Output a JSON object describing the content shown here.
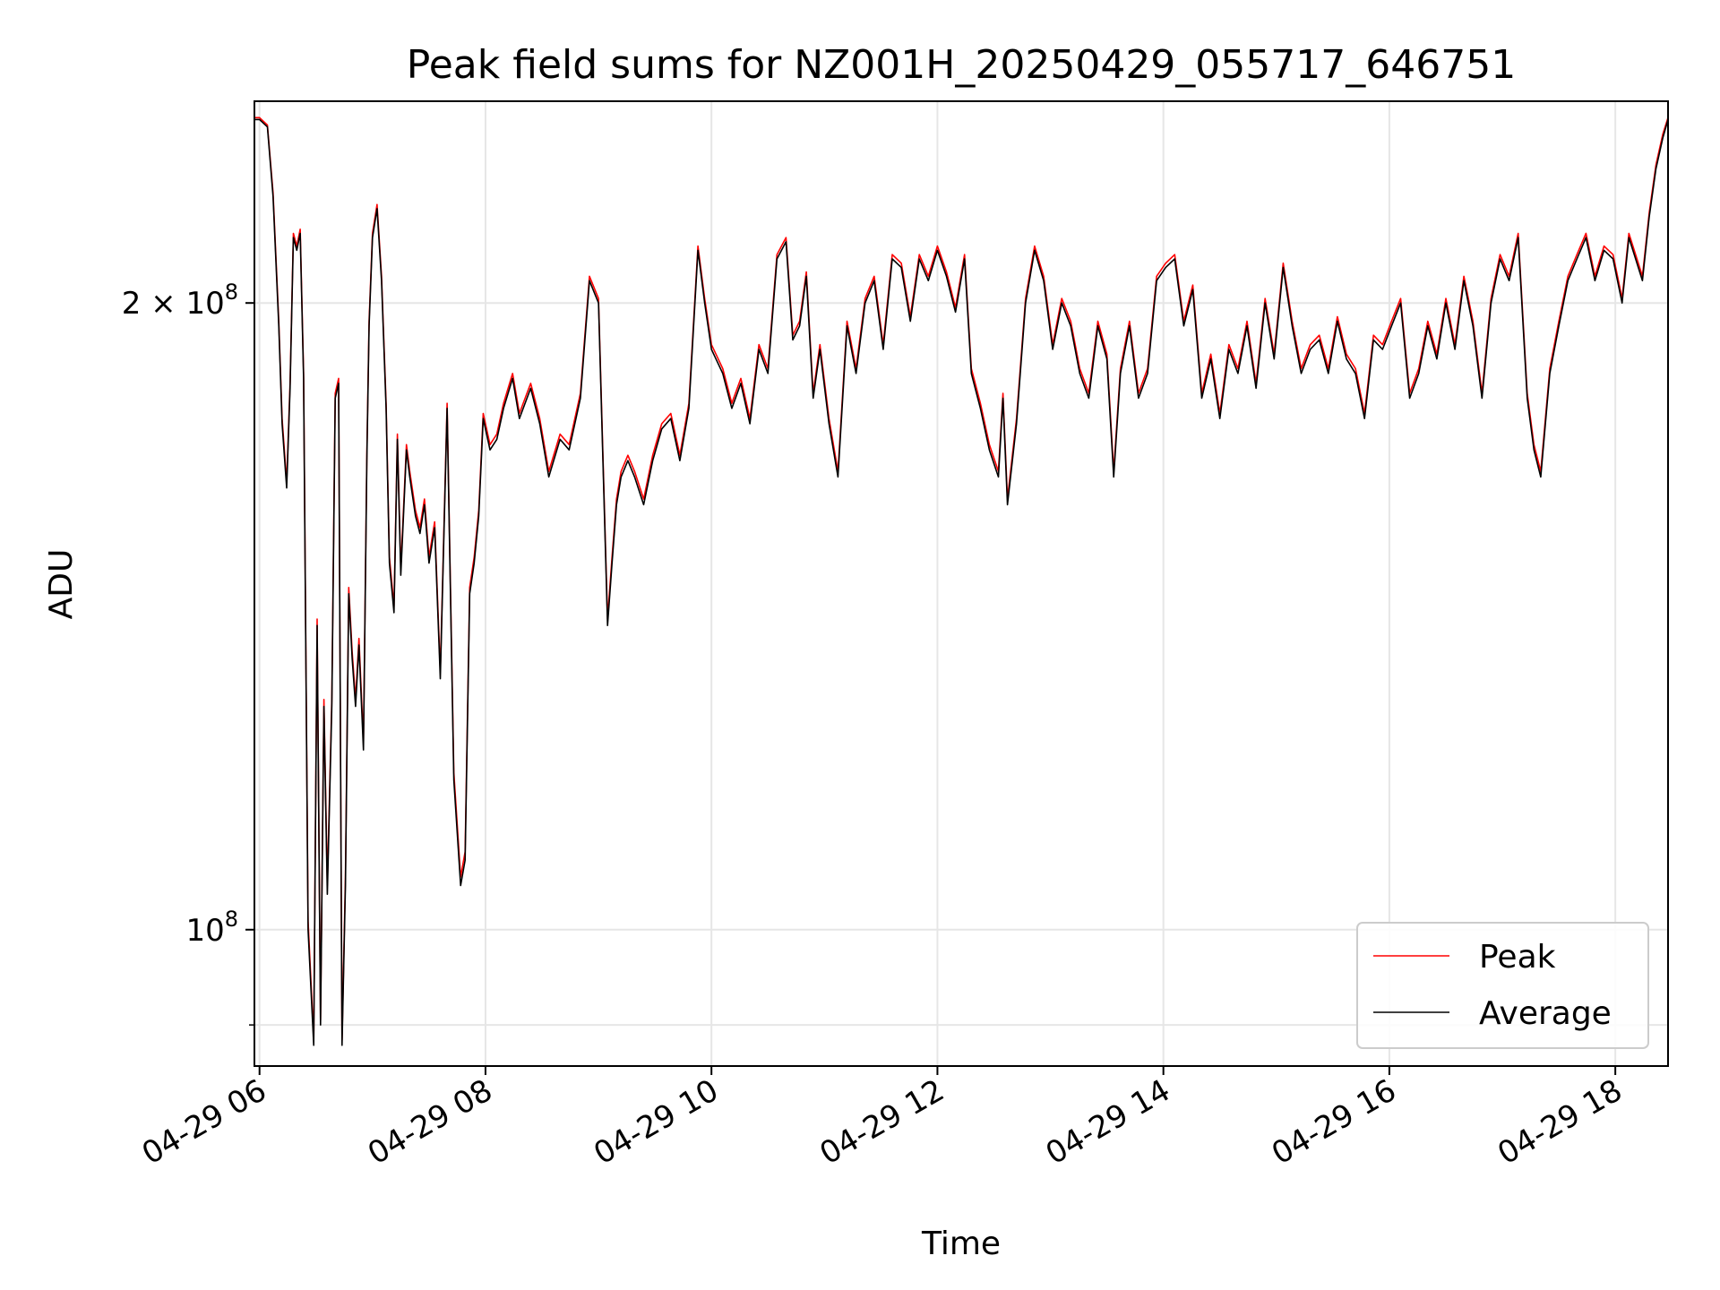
{
  "chart_data": {
    "type": "line",
    "title": "Peak field sums for NZ001H_20250429_055717_646751",
    "xlabel": "Time",
    "ylabel": "ADU",
    "xaxis": {
      "type": "datetime",
      "range": [
        "2025-04-29T05:57:17",
        "2025-04-29T18:28:00"
      ],
      "ticks": [
        {
          "value": "2025-04-29T06:00",
          "label": "04-29 06"
        },
        {
          "value": "2025-04-29T08:00",
          "label": "04-29 08"
        },
        {
          "value": "2025-04-29T10:00",
          "label": "04-29 10"
        },
        {
          "value": "2025-04-29T12:00",
          "label": "04-29 12"
        },
        {
          "value": "2025-04-29T14:00",
          "label": "04-29 14"
        },
        {
          "value": "2025-04-29T16:00",
          "label": "04-29 16"
        },
        {
          "value": "2025-04-29T18:00",
          "label": "04-29 18"
        }
      ]
    },
    "yaxis": {
      "scale": "log",
      "range": [
        86000000,
        250000000
      ],
      "major_ticks": [
        {
          "value": 100000000,
          "label_mantissa": "",
          "label_base": "10",
          "label_exp": "8"
        },
        {
          "value": 200000000,
          "label_mantissa": "2 × ",
          "label_base": "10",
          "label_exp": "8"
        }
      ],
      "minor_ticks": [
        90000000
      ]
    },
    "grid": true,
    "legend": {
      "location": "lower-right",
      "entries": [
        "Peak",
        "Average"
      ]
    },
    "colors": {
      "Peak": "#ff0000",
      "Average": "#000000"
    },
    "series": [
      {
        "name": "Average",
        "x_hours": [
          5.955,
          6.0,
          6.07,
          6.12,
          6.17,
          6.2,
          6.24,
          6.27,
          6.3,
          6.33,
          6.36,
          6.39,
          6.43,
          6.48,
          6.51,
          6.54,
          6.57,
          6.6,
          6.64,
          6.67,
          6.7,
          6.73,
          6.76,
          6.79,
          6.82,
          6.85,
          6.88,
          6.92,
          6.95,
          6.97,
          7.0,
          7.04,
          7.08,
          7.12,
          7.15,
          7.19,
          7.22,
          7.25,
          7.3,
          7.33,
          7.38,
          7.42,
          7.46,
          7.5,
          7.55,
          7.6,
          7.66,
          7.72,
          7.78,
          7.82,
          7.86,
          7.9,
          7.94,
          7.98,
          8.04,
          8.1,
          8.16,
          8.24,
          8.3,
          8.4,
          8.48,
          8.56,
          8.66,
          8.74,
          8.84,
          8.92,
          9.0,
          9.08,
          9.12,
          9.16,
          9.2,
          9.26,
          9.32,
          9.4,
          9.48,
          9.56,
          9.64,
          9.72,
          9.8,
          9.88,
          9.94,
          10.0,
          10.04,
          10.1,
          10.18,
          10.26,
          10.34,
          10.42,
          10.5,
          10.58,
          10.66,
          10.72,
          10.78,
          10.84,
          10.9,
          10.96,
          11.04,
          11.12,
          11.2,
          11.28,
          11.36,
          11.44,
          11.52,
          11.6,
          11.68,
          11.76,
          11.84,
          11.92,
          12.0,
          12.08,
          12.16,
          12.24,
          12.3,
          12.38,
          12.46,
          12.54,
          12.58,
          12.62,
          12.7,
          12.78,
          12.86,
          12.94,
          13.02,
          13.1,
          13.18,
          13.26,
          13.34,
          13.42,
          13.5,
          13.56,
          13.62,
          13.7,
          13.78,
          13.86,
          13.94,
          14.02,
          14.1,
          14.18,
          14.26,
          14.34,
          14.42,
          14.5,
          14.58,
          14.66,
          14.74,
          14.82,
          14.9,
          14.98,
          15.06,
          15.14,
          15.22,
          15.3,
          15.38,
          15.46,
          15.54,
          15.62,
          15.7,
          15.78,
          15.86,
          15.94,
          16.02,
          16.1,
          16.18,
          16.26,
          16.34,
          16.42,
          16.5,
          16.58,
          16.66,
          16.74,
          16.82,
          16.9,
          16.98,
          17.06,
          17.14,
          17.22,
          17.28,
          17.34,
          17.42,
          17.5,
          17.58,
          17.66,
          17.74,
          17.82,
          17.9,
          17.98,
          18.06,
          18.12,
          18.18,
          18.24,
          18.3,
          18.36,
          18.42,
          18.467
        ],
        "values": [
          245000000,
          245000000,
          243000000,
          225000000,
          195000000,
          175000000,
          163000000,
          182000000,
          215000000,
          212000000,
          216000000,
          184000000,
          100000000,
          88000000,
          140000000,
          90000000,
          128000000,
          104000000,
          128000000,
          180000000,
          183000000,
          88000000,
          105000000,
          145000000,
          135000000,
          128000000,
          137000000,
          122000000,
          168000000,
          195000000,
          215000000,
          222000000,
          205000000,
          178000000,
          150000000,
          142000000,
          172000000,
          148000000,
          170000000,
          165000000,
          158000000,
          155000000,
          160000000,
          150000000,
          156000000,
          132000000,
          178000000,
          118000000,
          105000000,
          108000000,
          145000000,
          150000000,
          158000000,
          176000000,
          170000000,
          172000000,
          178000000,
          184000000,
          176000000,
          182000000,
          175000000,
          165000000,
          172000000,
          170000000,
          180000000,
          205000000,
          200000000,
          140000000,
          150000000,
          160000000,
          165000000,
          168000000,
          165000000,
          160000000,
          168000000,
          174000000,
          176000000,
          168000000,
          178000000,
          212000000,
          200000000,
          190000000,
          188000000,
          185000000,
          178000000,
          183000000,
          175000000,
          190000000,
          185000000,
          210000000,
          214000000,
          192000000,
          195000000,
          206000000,
          180000000,
          190000000,
          175000000,
          165000000,
          195000000,
          185000000,
          200000000,
          205000000,
          190000000,
          210000000,
          208000000,
          196000000,
          210000000,
          205000000,
          212000000,
          206000000,
          198000000,
          210000000,
          185000000,
          178000000,
          170000000,
          165000000,
          180000000,
          160000000,
          175000000,
          200000000,
          212000000,
          205000000,
          190000000,
          200000000,
          195000000,
          185000000,
          180000000,
          195000000,
          188000000,
          165000000,
          185000000,
          195000000,
          180000000,
          185000000,
          205000000,
          208000000,
          210000000,
          195000000,
          203000000,
          180000000,
          188000000,
          176000000,
          190000000,
          185000000,
          195000000,
          182000000,
          200000000,
          188000000,
          208000000,
          195000000,
          185000000,
          190000000,
          192000000,
          185000000,
          196000000,
          188000000,
          185000000,
          176000000,
          192000000,
          190000000,
          195000000,
          200000000,
          180000000,
          185000000,
          195000000,
          188000000,
          200000000,
          190000000,
          205000000,
          195000000,
          180000000,
          200000000,
          210000000,
          205000000,
          215000000,
          180000000,
          170000000,
          165000000,
          185000000,
          195000000,
          205000000,
          210000000,
          215000000,
          205000000,
          212000000,
          210000000,
          200000000,
          215000000,
          210000000,
          205000000,
          220000000,
          232000000,
          240000000,
          245000000
        ]
      },
      {
        "name": "Peak",
        "x_hours": [
          5.955,
          6.0,
          6.07,
          6.12,
          6.17,
          6.2,
          6.24,
          6.27,
          6.3,
          6.33,
          6.36,
          6.39,
          6.43,
          6.48,
          6.51,
          6.54,
          6.57,
          6.6,
          6.64,
          6.67,
          6.7,
          6.73,
          6.76,
          6.79,
          6.82,
          6.85,
          6.88,
          6.92,
          6.95,
          6.97,
          7.0,
          7.04,
          7.08,
          7.12,
          7.15,
          7.19,
          7.22,
          7.25,
          7.3,
          7.33,
          7.38,
          7.42,
          7.46,
          7.5,
          7.55,
          7.6,
          7.66,
          7.72,
          7.78,
          7.82,
          7.86,
          7.9,
          7.94,
          7.98,
          8.04,
          8.1,
          8.16,
          8.24,
          8.3,
          8.4,
          8.48,
          8.56,
          8.66,
          8.74,
          8.84,
          8.92,
          9.0,
          9.08,
          9.12,
          9.16,
          9.2,
          9.26,
          9.32,
          9.4,
          9.48,
          9.56,
          9.64,
          9.72,
          9.8,
          9.88,
          9.94,
          10.0,
          10.04,
          10.1,
          10.18,
          10.26,
          10.34,
          10.42,
          10.5,
          10.58,
          10.66,
          10.72,
          10.78,
          10.84,
          10.9,
          10.96,
          11.04,
          11.12,
          11.2,
          11.28,
          11.36,
          11.44,
          11.52,
          11.6,
          11.68,
          11.76,
          11.84,
          11.92,
          12.0,
          12.08,
          12.16,
          12.24,
          12.3,
          12.38,
          12.46,
          12.54,
          12.58,
          12.62,
          12.7,
          12.78,
          12.86,
          12.94,
          13.02,
          13.1,
          13.18,
          13.26,
          13.34,
          13.42,
          13.5,
          13.56,
          13.62,
          13.7,
          13.78,
          13.86,
          13.94,
          14.02,
          14.1,
          14.18,
          14.26,
          14.34,
          14.42,
          14.5,
          14.58,
          14.66,
          14.74,
          14.82,
          14.9,
          14.98,
          15.06,
          15.14,
          15.22,
          15.3,
          15.38,
          15.46,
          15.54,
          15.62,
          15.7,
          15.78,
          15.86,
          15.94,
          16.02,
          16.1,
          16.18,
          16.26,
          16.34,
          16.42,
          16.5,
          16.58,
          16.66,
          16.74,
          16.82,
          16.9,
          16.98,
          17.06,
          17.14,
          17.22,
          17.28,
          17.34,
          17.42,
          17.5,
          17.58,
          17.66,
          17.74,
          17.82,
          17.9,
          17.98,
          18.06,
          18.12,
          18.18,
          18.24,
          18.3,
          18.36,
          18.42,
          18.467
        ],
        "values": [
          245500000,
          245500000,
          243500000,
          226000000,
          196000000,
          176000000,
          164000000,
          183000000,
          216000000,
          213000000,
          217000000,
          185000000,
          101000000,
          88500000,
          141000000,
          90500000,
          129000000,
          105000000,
          129000000,
          181000000,
          184000000,
          88500000,
          106000000,
          146000000,
          136000000,
          129000000,
          138000000,
          123000000,
          169000000,
          196000000,
          216000000,
          223000000,
          206000000,
          179000000,
          151000000,
          143000000,
          173000000,
          149000000,
          171000000,
          166000000,
          159000000,
          156000000,
          161000000,
          151000000,
          157000000,
          133000000,
          179000000,
          119000000,
          106000000,
          109000000,
          146000000,
          151000000,
          159000000,
          177000000,
          171000000,
          173000000,
          179000000,
          185000000,
          177000000,
          183000000,
          176000000,
          166000000,
          173000000,
          171000000,
          181000000,
          206000000,
          201000000,
          141000000,
          151000000,
          161000000,
          166000000,
          169000000,
          166000000,
          161000000,
          169000000,
          175000000,
          177000000,
          169000000,
          179000000,
          213000000,
          201000000,
          191000000,
          189000000,
          186000000,
          179000000,
          184000000,
          176000000,
          191000000,
          186000000,
          211000000,
          215000000,
          193000000,
          196000000,
          207000000,
          181000000,
          191000000,
          176000000,
          166000000,
          196000000,
          186000000,
          201000000,
          206000000,
          191000000,
          211000000,
          209000000,
          197000000,
          211000000,
          206000000,
          213000000,
          207000000,
          199000000,
          211000000,
          186000000,
          179000000,
          171000000,
          166000000,
          181000000,
          161000000,
          176000000,
          201000000,
          213000000,
          206000000,
          191000000,
          201000000,
          196000000,
          186000000,
          181000000,
          196000000,
          189000000,
          166000000,
          186000000,
          196000000,
          181000000,
          186000000,
          206000000,
          209000000,
          211000000,
          196000000,
          204000000,
          181000000,
          189000000,
          177000000,
          191000000,
          186000000,
          196000000,
          183000000,
          201000000,
          189000000,
          209000000,
          196000000,
          186000000,
          191000000,
          193000000,
          186000000,
          197000000,
          189000000,
          186000000,
          177000000,
          193000000,
          191000000,
          196000000,
          201000000,
          181000000,
          186000000,
          196000000,
          189000000,
          201000000,
          191000000,
          206000000,
          196000000,
          181000000,
          201000000,
          211000000,
          206000000,
          216000000,
          181000000,
          171000000,
          166000000,
          186000000,
          196000000,
          206000000,
          211000000,
          216000000,
          206000000,
          213000000,
          211000000,
          201000000,
          216000000,
          211000000,
          206000000,
          221000000,
          233000000,
          241000000,
          245500000
        ]
      }
    ]
  }
}
